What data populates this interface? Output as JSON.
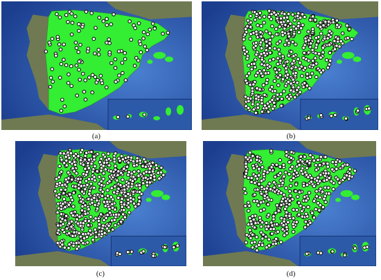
{
  "figure": {
    "panels": [
      {
        "caption": "(a)",
        "point_density": "low",
        "point_count_shown": 120
      },
      {
        "caption": "(b)",
        "point_density": "high",
        "point_count_shown": 520
      },
      {
        "caption": "(c)",
        "point_density": "very-high",
        "point_count_shown": 700
      },
      {
        "caption": "(d)",
        "point_density": "medium-high",
        "point_count_shown": 470
      }
    ]
  },
  "colors": {
    "sea_dark": "#1c3e8f",
    "sea_light": "#4a7fd0",
    "land_highlight": "#33ee33",
    "land_neighbor": "#6f7a52",
    "inset_sea": "#2d5aa8",
    "marker_fill": "#ffffff",
    "marker_stroke": "#111111"
  },
  "icons": [
    "station-marker-icon"
  ]
}
